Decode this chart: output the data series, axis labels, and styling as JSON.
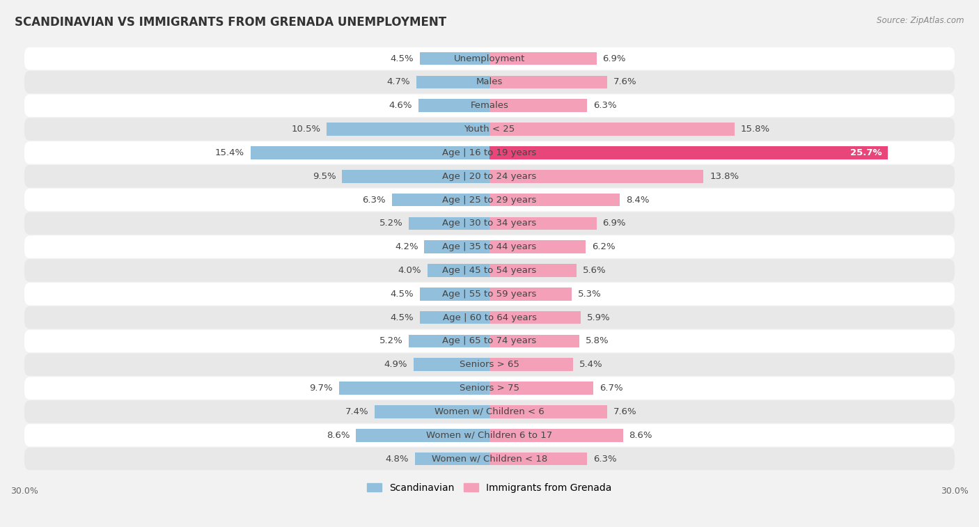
{
  "title": "SCANDINAVIAN VS IMMIGRANTS FROM GRENADA UNEMPLOYMENT",
  "source": "Source: ZipAtlas.com",
  "categories": [
    "Unemployment",
    "Males",
    "Females",
    "Youth < 25",
    "Age | 16 to 19 years",
    "Age | 20 to 24 years",
    "Age | 25 to 29 years",
    "Age | 30 to 34 years",
    "Age | 35 to 44 years",
    "Age | 45 to 54 years",
    "Age | 55 to 59 years",
    "Age | 60 to 64 years",
    "Age | 65 to 74 years",
    "Seniors > 65",
    "Seniors > 75",
    "Women w/ Children < 6",
    "Women w/ Children 6 to 17",
    "Women w/ Children < 18"
  ],
  "scandinavian": [
    4.5,
    4.7,
    4.6,
    10.5,
    15.4,
    9.5,
    6.3,
    5.2,
    4.2,
    4.0,
    4.5,
    4.5,
    5.2,
    4.9,
    9.7,
    7.4,
    8.6,
    4.8
  ],
  "grenada": [
    6.9,
    7.6,
    6.3,
    15.8,
    25.7,
    13.8,
    8.4,
    6.9,
    6.2,
    5.6,
    5.3,
    5.9,
    5.8,
    5.4,
    6.7,
    7.6,
    8.6,
    6.3
  ],
  "scandinavian_color": "#92c0dc",
  "grenada_color": "#f4a0b8",
  "grenada_highlight_color": "#e8457a",
  "background_color": "#f2f2f2",
  "row_bg_white": "#ffffff",
  "row_bg_gray": "#e8e8e8",
  "axis_max": 30.0,
  "label_fontsize": 9.5,
  "title_fontsize": 12,
  "legend_labels": [
    "Scandinavian",
    "Immigrants from Grenada"
  ],
  "highlight_row": 4
}
